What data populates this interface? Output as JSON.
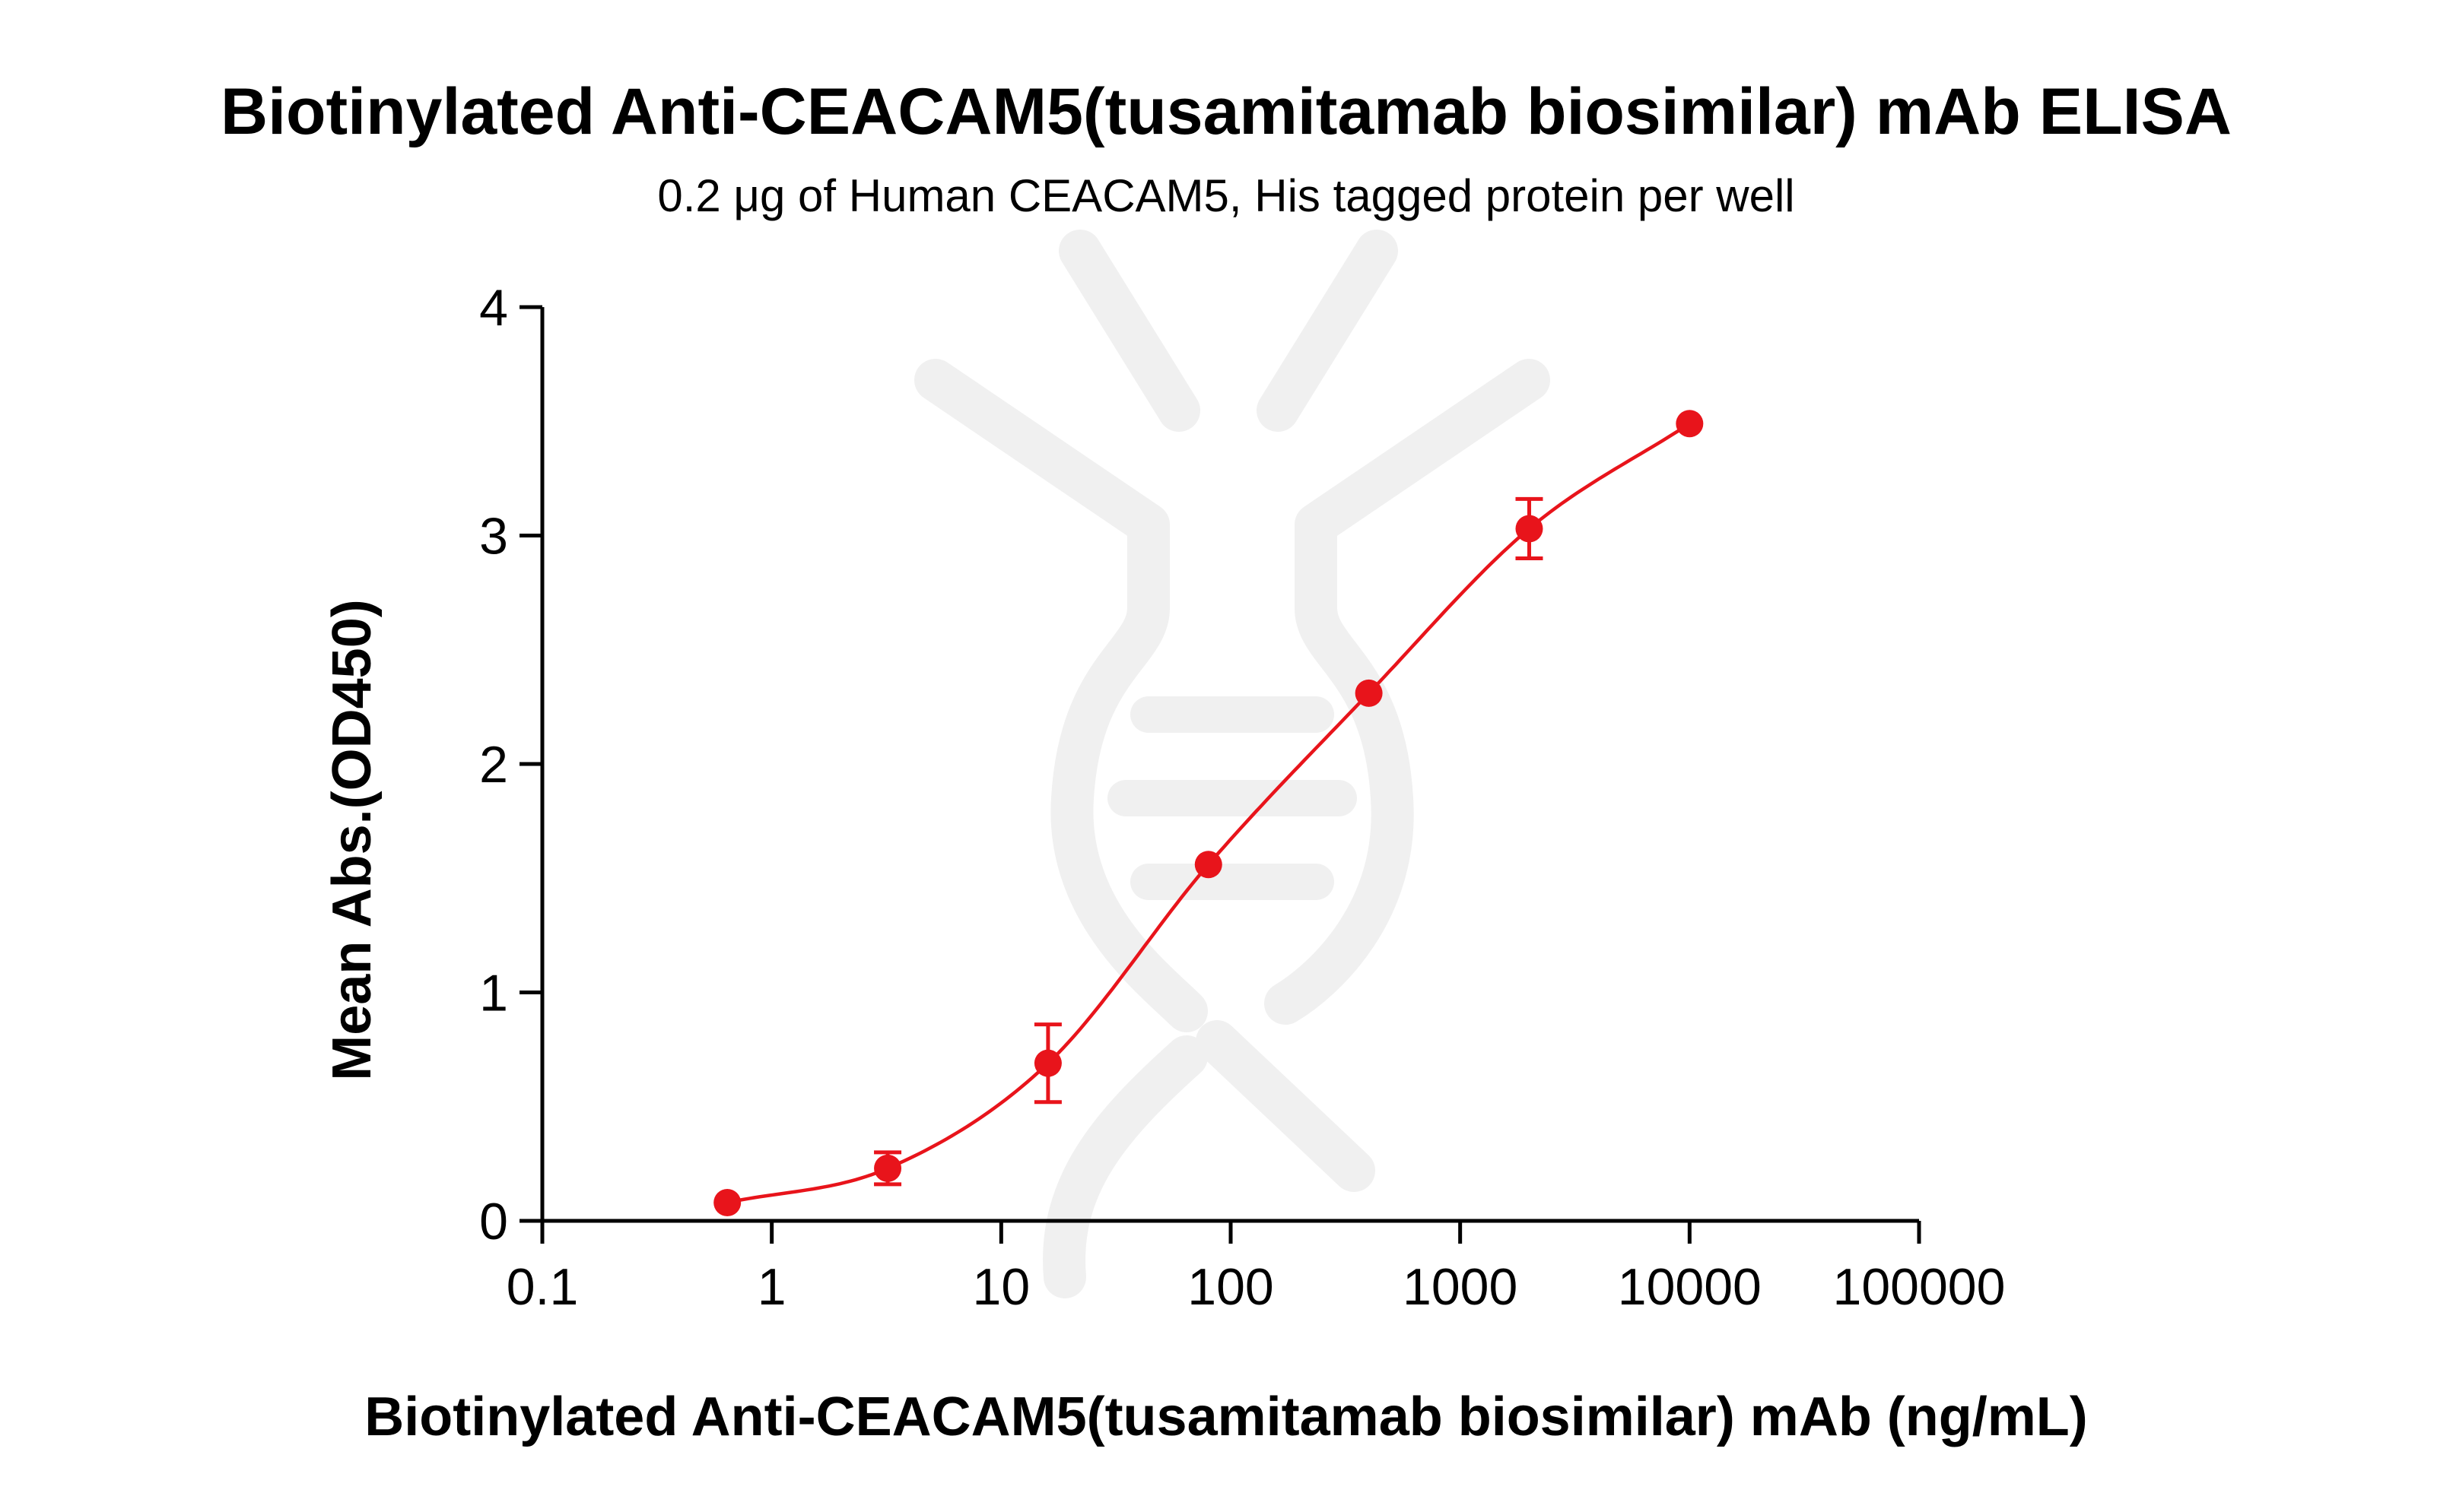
{
  "chart_data": {
    "type": "scatter",
    "title": "Biotinylated Anti-CEACAM5(tusamitamab biosimilar) mAb ELISA",
    "subtitle": "0.2 μg of Human CEACAM5, His tagged protein per well",
    "xlabel": "Biotinylated Anti-CEACAM5(tusamitamab biosimilar) mAb (ng/mL)",
    "ylabel": "Mean Abs.(OD450)",
    "xscale": "log",
    "xlim": [
      0.1,
      100000
    ],
    "ylim": [
      0,
      4
    ],
    "x_ticks": [
      0.1,
      1,
      10,
      100,
      1000,
      10000,
      100000
    ],
    "x_tick_labels": [
      "0.1",
      "1",
      "10",
      "100",
      "1000",
      "10000",
      "100000"
    ],
    "y_ticks": [
      0,
      1,
      2,
      3,
      4
    ],
    "y_tick_labels": [
      "0",
      "1",
      "2",
      "3",
      "4"
    ],
    "grid": false,
    "color": "#e8141b",
    "series": [
      {
        "x": [
          0.64,
          3.2,
          16,
          80,
          400,
          2000,
          10000
        ],
        "y": [
          0.08,
          0.23,
          0.69,
          1.56,
          2.31,
          3.03,
          3.49
        ],
        "error": [
          0.0,
          0.07,
          0.17,
          0.0,
          0.0,
          0.13,
          0.0
        ],
        "fit": "4PL"
      }
    ]
  }
}
